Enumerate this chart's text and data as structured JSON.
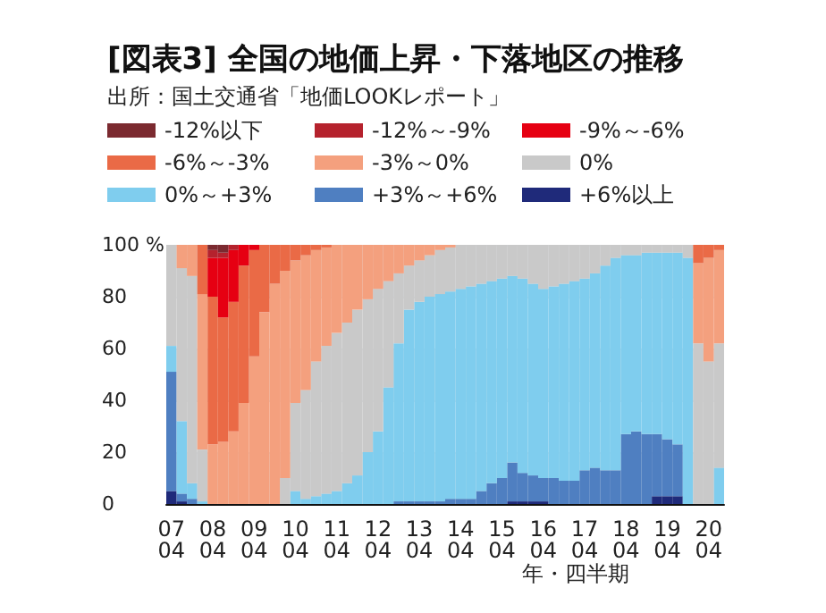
{
  "chart_data": {
    "type": "bar",
    "stacked": true,
    "title": "[図表3] 全国の地価上昇・下落地区の推移",
    "subtitle": "出所：国土交通省「地価LOOKレポート」",
    "xlabel": "年・四半期",
    "categories": [
      "07\n04",
      null,
      null,
      null,
      "08\n04",
      null,
      null,
      null,
      "09\n04",
      null,
      null,
      null,
      "10\n04",
      null,
      null,
      null,
      "11\n04",
      null,
      null,
      null,
      "12\n04",
      null,
      null,
      null,
      "13\n04",
      null,
      null,
      null,
      "14\n04",
      null,
      null,
      null,
      "15\n04",
      null,
      null,
      null,
      "16\n04",
      null,
      null,
      null,
      "17\n04",
      null,
      null,
      null,
      "18\n04",
      null,
      null,
      null,
      "19\n04",
      null,
      null,
      null,
      "20\n04",
      null
    ],
    "ylim": [
      0,
      100
    ],
    "yticks": [
      0,
      20,
      40,
      60,
      80,
      {
        "value": 100,
        "label": "100 %"
      }
    ],
    "grid": "y",
    "legend": "top",
    "series": [
      {
        "name": "+6%以上",
        "color": "#1f2a7a",
        "values": [
          5,
          1,
          0,
          0,
          0,
          0,
          0,
          0,
          0,
          0,
          0,
          0,
          0,
          0,
          0,
          0,
          0,
          0,
          0,
          0,
          0,
          0,
          0,
          0,
          0,
          0,
          0,
          0,
          0,
          0,
          0,
          0,
          0,
          1,
          1,
          1,
          1,
          0,
          0,
          0,
          0,
          0,
          0,
          0,
          0,
          0,
          0,
          3,
          3,
          3,
          0,
          0,
          0,
          0
        ]
      },
      {
        "name": "+3%～+6%",
        "color": "#4f7fc1",
        "values": [
          46,
          3,
          2,
          0,
          0,
          0,
          0,
          0,
          0,
          0,
          0,
          0,
          0,
          0,
          0,
          0,
          0,
          0,
          0,
          0,
          0,
          0,
          1,
          1,
          1,
          1,
          1,
          2,
          2,
          2,
          5,
          8,
          10,
          15,
          11,
          10,
          9,
          10,
          9,
          9,
          13,
          14,
          13,
          13,
          27,
          28,
          27,
          24,
          22,
          20,
          0,
          0,
          0,
          0
        ]
      },
      {
        "name": "0%～+3%",
        "color": "#7fcdee",
        "values": [
          10,
          28,
          6,
          1,
          0,
          0,
          0,
          0,
          0,
          0,
          0,
          0,
          5,
          2,
          3,
          4,
          5,
          8,
          11,
          20,
          28,
          45,
          61,
          74,
          77,
          79,
          80,
          80,
          81,
          82,
          80,
          78,
          77,
          72,
          75,
          74,
          73,
          74,
          76,
          77,
          74,
          75,
          79,
          82,
          69,
          68,
          70,
          70,
          72,
          74,
          95,
          0,
          0,
          14
        ]
      },
      {
        "name": "0%",
        "color": "#c9c9c9",
        "values": [
          39,
          59,
          80,
          20,
          0,
          0,
          0,
          0,
          0,
          0,
          0,
          10,
          34,
          42,
          52,
          57,
          61,
          62,
          64,
          59,
          55,
          41,
          27,
          17,
          16,
          16,
          17,
          17,
          17,
          16,
          15,
          14,
          13,
          12,
          13,
          15,
          17,
          16,
          15,
          14,
          13,
          11,
          8,
          5,
          4,
          4,
          3,
          3,
          3,
          3,
          5,
          62,
          55,
          48
        ]
      },
      {
        "name": "-3%～0%",
        "color": "#f4a07e",
        "values": [
          0,
          9,
          12,
          60,
          23,
          24,
          28,
          39,
          57,
          74,
          85,
          80,
          55,
          52,
          43,
          38,
          34,
          30,
          25,
          21,
          17,
          14,
          11,
          8,
          6,
          4,
          2,
          1,
          0,
          0,
          0,
          0,
          0,
          0,
          0,
          0,
          0,
          0,
          0,
          0,
          0,
          0,
          0,
          0,
          0,
          0,
          0,
          0,
          0,
          0,
          0,
          31,
          40,
          36
        ]
      },
      {
        "name": "-6%～-3%",
        "color": "#ea6a46",
        "values": [
          0,
          0,
          0,
          19,
          57,
          48,
          50,
          53,
          41,
          26,
          15,
          10,
          6,
          4,
          2,
          1,
          0,
          0,
          0,
          0,
          0,
          0,
          0,
          0,
          0,
          0,
          0,
          0,
          0,
          0,
          0,
          0,
          0,
          0,
          0,
          0,
          0,
          0,
          0,
          0,
          0,
          0,
          0,
          0,
          0,
          0,
          0,
          0,
          0,
          0,
          0,
          7,
          5,
          2
        ]
      },
      {
        "name": "-9%～-6%",
        "color": "#e60012",
        "values": [
          0,
          0,
          0,
          0,
          15,
          23,
          20,
          8,
          2,
          0,
          0,
          0,
          0,
          0,
          0,
          0,
          0,
          0,
          0,
          0,
          0,
          0,
          0,
          0,
          0,
          0,
          0,
          0,
          0,
          0,
          0,
          0,
          0,
          0,
          0,
          0,
          0,
          0,
          0,
          0,
          0,
          0,
          0,
          0,
          0,
          0,
          0,
          0,
          0,
          0,
          0,
          0,
          0,
          0
        ]
      },
      {
        "name": "-12%～-9%",
        "color": "#b5222d",
        "values": [
          0,
          0,
          0,
          0,
          3,
          2,
          2,
          0,
          0,
          0,
          0,
          0,
          0,
          0,
          0,
          0,
          0,
          0,
          0,
          0,
          0,
          0,
          0,
          0,
          0,
          0,
          0,
          0,
          0,
          0,
          0,
          0,
          0,
          0,
          0,
          0,
          0,
          0,
          0,
          0,
          0,
          0,
          0,
          0,
          0,
          0,
          0,
          0,
          0,
          0,
          0,
          0,
          0,
          0
        ]
      },
      {
        "name": "-12%以下",
        "color": "#7b2a30",
        "values": [
          0,
          0,
          0,
          0,
          2,
          3,
          0,
          0,
          0,
          0,
          0,
          0,
          0,
          0,
          0,
          0,
          0,
          0,
          0,
          0,
          0,
          0,
          0,
          0,
          0,
          0,
          0,
          0,
          0,
          0,
          0,
          0,
          0,
          0,
          0,
          0,
          0,
          0,
          0,
          0,
          0,
          0,
          0,
          0,
          0,
          0,
          0,
          0,
          0,
          0,
          0,
          0,
          0,
          0
        ]
      }
    ]
  }
}
